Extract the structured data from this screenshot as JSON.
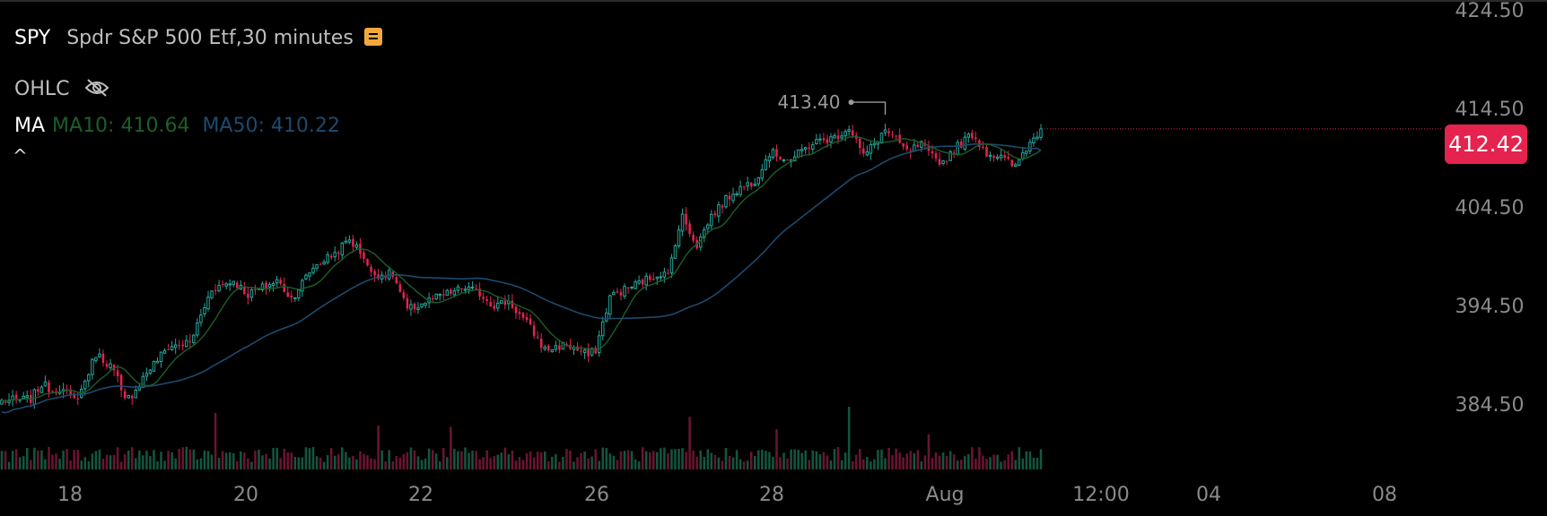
{
  "header": {
    "symbol": "SPY",
    "name": "Spdr S&P 500 Etf,30 minutes",
    "note_icon": "note-icon"
  },
  "ohlc": {
    "label": "OHLC",
    "icon": "eye-off-icon"
  },
  "ma": {
    "label": "MA",
    "ma10_text": "MA10: 410.64",
    "ma50_text": "MA50: 410.22",
    "ma10_color": "#1d5e28",
    "ma50_color": "#1d4a6e"
  },
  "collapse_icon": "^",
  "last_price": {
    "text": "412.42",
    "value": 412.42,
    "color": "#e5234f"
  },
  "colors": {
    "up": "#26a69a",
    "down": "#e5234f",
    "up_volume": "#14563f",
    "down_volume": "#6b1530",
    "grid_text": "#8a8a8a"
  },
  "chart_data": {
    "type": "candlestick",
    "title": "Spdr S&P 500 Etf,30 minutes",
    "y_axis": {
      "ticks": [
        424.5,
        414.5,
        404.5,
        394.5,
        384.5
      ],
      "tick_labels": [
        "424.50",
        "414.50",
        "404.50",
        "394.50",
        "384.50"
      ],
      "range": [
        383,
        425
      ]
    },
    "x_axis": {
      "tick_labels": [
        "18",
        "20",
        "22",
        "26",
        "28",
        "Aug",
        "12:00",
        "04",
        "08"
      ]
    },
    "high_annotation": {
      "text": "413.40",
      "value": 413.4
    },
    "series": [
      {
        "name": "MA10",
        "values": []
      },
      {
        "name": "MA50",
        "values": []
      }
    ],
    "anchors": [
      [
        0,
        384.8
      ],
      [
        8,
        385.0
      ],
      [
        11,
        386.5
      ],
      [
        14,
        385.9
      ],
      [
        16,
        386.1
      ],
      [
        20,
        384.9
      ],
      [
        22,
        385.9
      ],
      [
        26,
        389.6
      ],
      [
        30,
        388.4
      ],
      [
        32,
        387.0
      ],
      [
        33,
        385.6
      ],
      [
        34,
        384.8
      ],
      [
        36,
        385.5
      ],
      [
        40,
        387.7
      ],
      [
        46,
        390.3
      ],
      [
        52,
        390.7
      ],
      [
        58,
        396.2
      ],
      [
        64,
        397.0
      ],
      [
        68,
        395.6
      ],
      [
        76,
        397.0
      ],
      [
        80,
        395.2
      ],
      [
        86,
        398.4
      ],
      [
        92,
        399.8
      ],
      [
        96,
        401.2
      ],
      [
        100,
        399.5
      ],
      [
        102,
        397.7
      ],
      [
        108,
        397.6
      ],
      [
        112,
        394.0
      ],
      [
        118,
        395.0
      ],
      [
        128,
        396.3
      ],
      [
        132,
        395.7
      ],
      [
        136,
        394.5
      ],
      [
        140,
        394.9
      ],
      [
        146,
        392.2
      ],
      [
        150,
        390.0
      ],
      [
        156,
        390.5
      ],
      [
        162,
        389.4
      ],
      [
        164,
        390.0
      ],
      [
        168,
        395.4
      ],
      [
        182,
        397.8
      ],
      [
        184,
        397.5
      ],
      [
        186,
        401.0
      ],
      [
        188,
        403.5
      ],
      [
        192,
        400.6
      ],
      [
        196,
        403.6
      ],
      [
        202,
        406.0
      ],
      [
        208,
        407.2
      ],
      [
        212,
        410.0
      ],
      [
        218,
        409.3
      ],
      [
        224,
        411.0
      ],
      [
        230,
        411.5
      ],
      [
        234,
        412.6
      ],
      [
        236,
        411.3
      ],
      [
        238,
        409.6
      ],
      [
        244,
        412.3
      ],
      [
        248,
        410.9
      ],
      [
        250,
        410.0
      ],
      [
        254,
        410.8
      ],
      [
        256,
        409.8
      ],
      [
        260,
        409.0
      ],
      [
        262,
        410.0
      ],
      [
        268,
        411.9
      ],
      [
        272,
        410.0
      ],
      [
        276,
        409.5
      ],
      [
        280,
        408.5
      ],
      [
        282,
        410.0
      ],
      [
        284,
        411.0
      ],
      [
        287,
        412.42
      ]
    ],
    "volume_spikes": [
      [
        59,
        4.5
      ],
      [
        104,
        3.5
      ],
      [
        124,
        3.4
      ],
      [
        190,
        4.2
      ],
      [
        214,
        3.2
      ],
      [
        234,
        5.0
      ],
      [
        256,
        2.8
      ]
    ]
  }
}
